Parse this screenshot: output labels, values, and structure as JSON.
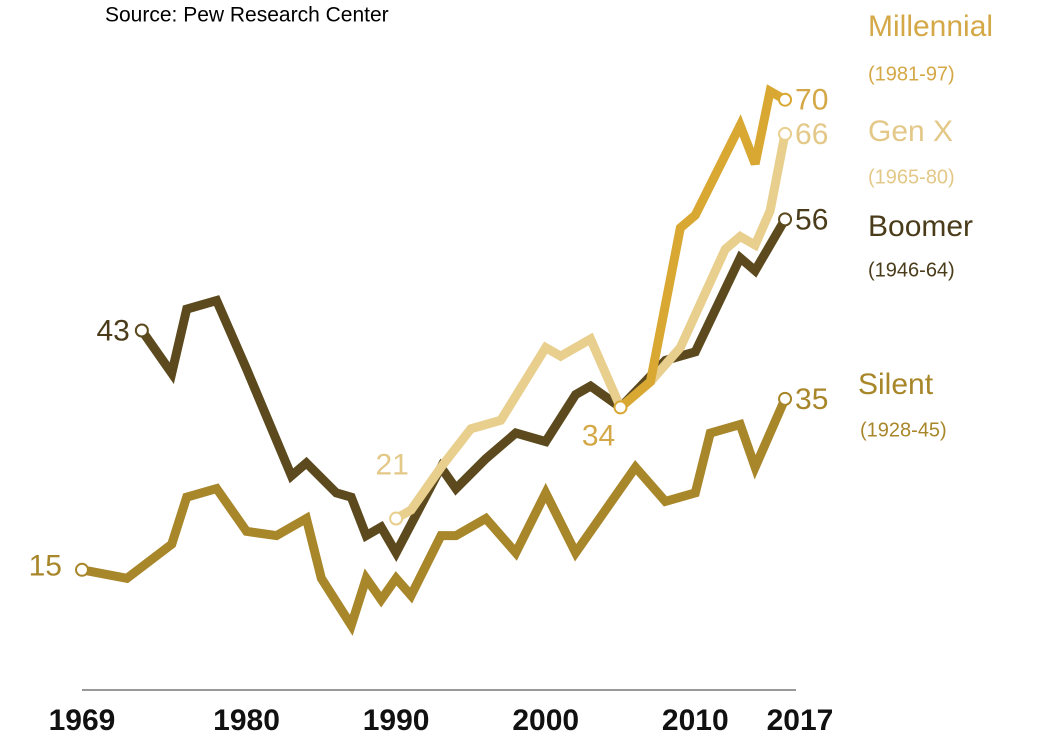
{
  "chart_data": {
    "type": "line",
    "source": "Source: Pew Research Center",
    "xlim": [
      1969,
      2017
    ],
    "xticks": [
      1969,
      1980,
      1990,
      2000,
      2010,
      2017
    ],
    "ylim": [
      0,
      75
    ],
    "series": [
      {
        "name": "Silent",
        "years": "(1928-45)",
        "color": "#a8862a",
        "x": [
          1969,
          1972,
          1975,
          1976,
          1978,
          1980,
          1982,
          1984,
          1985,
          1987,
          1988,
          1989,
          1990,
          1991,
          1993,
          1994,
          1996,
          1998,
          2000,
          2002,
          2006,
          2008,
          2010,
          2011,
          2013,
          2014,
          2016
        ],
        "values": [
          15,
          14,
          18,
          23.5,
          24.5,
          19.5,
          19,
          21,
          14,
          8.5,
          14,
          11.5,
          14,
          12,
          19,
          19,
          21,
          17,
          24,
          17,
          27,
          23,
          24,
          31,
          32,
          27,
          35
        ]
      },
      {
        "name": "Boomer",
        "years": "(1946-64)",
        "color": "#5c4a1e",
        "x": [
          1973,
          1975,
          1976,
          1978,
          1980,
          1983,
          1984,
          1986,
          1987,
          1988,
          1989,
          1990,
          1993,
          1994,
          1996,
          1998,
          2000,
          2002,
          2003,
          2005,
          2008,
          2010,
          2013,
          2014,
          2016
        ],
        "values": [
          43,
          38,
          45.5,
          46.5,
          38.5,
          26,
          27.5,
          24,
          23.5,
          19,
          20,
          17,
          27,
          24.5,
          28,
          31,
          30,
          35.5,
          36.5,
          34,
          39.5,
          40.5,
          51.5,
          50,
          56
        ]
      },
      {
        "name": "Gen X",
        "years": "(1965-80)",
        "color": "#e8cf8e",
        "x": [
          1990,
          1991,
          1993,
          1995,
          1997,
          2000,
          2001,
          2003,
          2005,
          2007,
          2009,
          2012,
          2013,
          2014,
          2015,
          2016
        ],
        "values": [
          21,
          22,
          27,
          31.5,
          32.5,
          41,
          40,
          42,
          34,
          37,
          41,
          52.5,
          54,
          53,
          57,
          66
        ]
      },
      {
        "name": "Millennial",
        "years": "(1981-97)",
        "color": "#d9a832",
        "x": [
          2005,
          2007,
          2009,
          2010,
          2011,
          2013,
          2014,
          2015,
          2016
        ],
        "values": [
          34,
          37,
          55,
          56.5,
          60,
          67,
          62.5,
          71,
          70
        ]
      }
    ]
  }
}
